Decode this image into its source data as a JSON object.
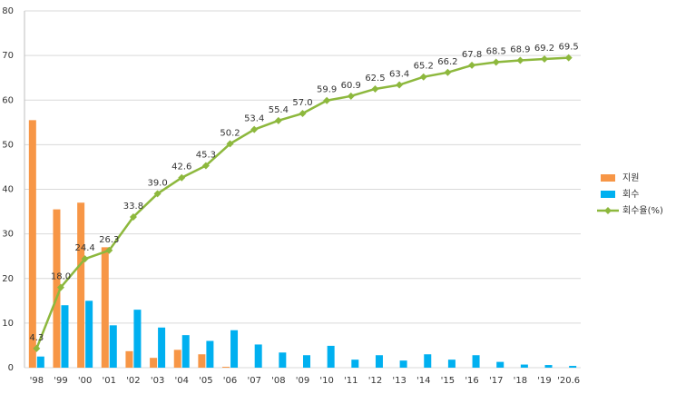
{
  "chart_data": {
    "type": "combo",
    "categories": [
      "'98",
      "'99",
      "'00",
      "'01",
      "'02",
      "'03",
      "'04",
      "'05",
      "'06",
      "'07",
      "'08",
      "'09",
      "'10",
      "'11",
      "'12",
      "'13",
      "'14",
      "'15",
      "'16",
      "'17",
      "'18",
      "'19",
      "'20.6"
    ],
    "series": [
      {
        "name": "지원",
        "type": "bar",
        "color": "#f79646",
        "values": [
          55.5,
          35.5,
          37,
          27,
          3.7,
          2.2,
          4,
          3,
          0.2,
          0,
          0,
          0,
          0,
          0,
          0,
          0,
          0,
          0,
          0,
          0,
          0,
          0,
          0
        ]
      },
      {
        "name": "회수",
        "type": "bar",
        "color": "#00b0f0",
        "values": [
          2.5,
          14,
          15,
          9.5,
          13,
          9,
          7.3,
          6,
          8.4,
          5.2,
          3.4,
          2.8,
          4.9,
          1.8,
          2.8,
          1.6,
          3,
          1.8,
          2.8,
          1.3,
          0.7,
          0.6,
          0.4
        ]
      },
      {
        "name": "회수율(%)",
        "type": "line",
        "color": "#8db83d",
        "values": [
          4.3,
          18.0,
          24.4,
          26.3,
          33.8,
          39.0,
          42.6,
          45.3,
          50.2,
          53.4,
          55.4,
          57.0,
          59.9,
          60.9,
          62.5,
          63.4,
          65.2,
          66.2,
          67.8,
          68.5,
          68.9,
          69.2,
          69.5
        ],
        "value_labels": [
          "4.3",
          "18.0",
          "24.4",
          "26.3",
          "33.8",
          "39.0",
          "42.6",
          "45.3",
          "50.2",
          "53.4",
          "55.4",
          "57.0",
          "59.9",
          "60.9",
          "62.5",
          "63.4",
          "65.2",
          "66.2",
          "67.8",
          "68.5",
          "68.9",
          "69.2",
          "69.5"
        ]
      }
    ],
    "ylim": [
      0,
      80
    ],
    "yticks": [
      0,
      10,
      20,
      30,
      40,
      50,
      60,
      70,
      80
    ],
    "grid": true,
    "legend": "right"
  }
}
